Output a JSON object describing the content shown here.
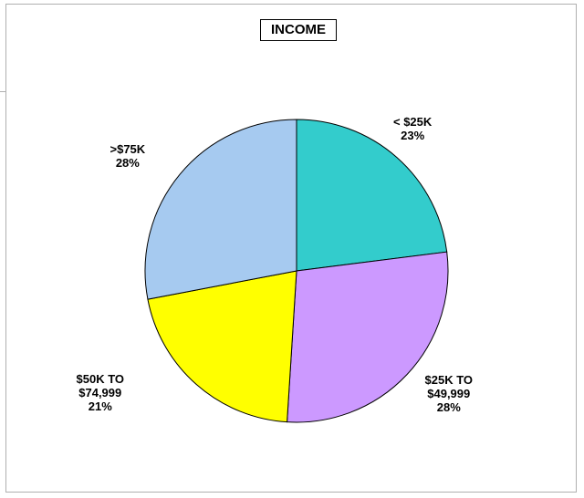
{
  "chart_data": {
    "type": "pie",
    "title": "INCOME",
    "slices": [
      {
        "label_lines": [
          "< $25K"
        ],
        "value": 23,
        "pct_label": "23%",
        "color": "#33CCCC"
      },
      {
        "label_lines": [
          "$25K TO",
          "$49,999"
        ],
        "value": 28,
        "pct_label": "28%",
        "color": "#CC99FF"
      },
      {
        "label_lines": [
          "$50K TO",
          "$74,999"
        ],
        "value": 21,
        "pct_label": "21%",
        "color": "#FFFF00"
      },
      {
        "label_lines": [
          ">$75K"
        ],
        "value": 28,
        "pct_label": "28%",
        "color": "#A6CAF0"
      }
    ],
    "start": "12 o'clock",
    "direction": "clockwise",
    "outline_color": "#000000"
  }
}
